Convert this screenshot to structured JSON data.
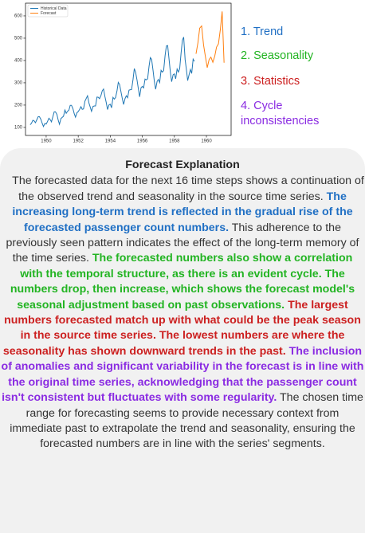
{
  "chart_data": {
    "type": "line",
    "legend": "upper left",
    "xlim": [
      1948.71,
      1961.54
    ],
    "ylim": [
      64,
      657
    ],
    "xticks": [
      1950,
      1952,
      1954,
      1956,
      1958,
      1960
    ],
    "yticks": [
      100,
      200,
      300,
      400,
      500,
      600
    ],
    "grid": false,
    "series": [
      {
        "name": "Historical Data",
        "color": "#1f77b4",
        "x": [
          1949.0,
          1949.08,
          1949.17,
          1949.25,
          1949.33,
          1949.42,
          1949.5,
          1949.58,
          1949.67,
          1949.75,
          1949.83,
          1949.92,
          1950.0,
          1950.08,
          1950.17,
          1950.25,
          1950.33,
          1950.42,
          1950.5,
          1950.58,
          1950.67,
          1950.75,
          1950.83,
          1950.92,
          1951.0,
          1951.08,
          1951.17,
          1951.25,
          1951.33,
          1951.42,
          1951.5,
          1951.58,
          1951.67,
          1951.75,
          1951.83,
          1951.92,
          1952.0,
          1952.08,
          1952.17,
          1952.25,
          1952.33,
          1952.42,
          1952.5,
          1952.58,
          1952.67,
          1952.75,
          1952.83,
          1952.92,
          1953.0,
          1953.08,
          1953.17,
          1953.25,
          1953.33,
          1953.42,
          1953.5,
          1953.58,
          1953.67,
          1953.75,
          1953.83,
          1953.92,
          1954.0,
          1954.08,
          1954.17,
          1954.25,
          1954.33,
          1954.42,
          1954.5,
          1954.58,
          1954.67,
          1954.75,
          1954.83,
          1954.92,
          1955.0,
          1955.08,
          1955.17,
          1955.25,
          1955.33,
          1955.42,
          1955.5,
          1955.58,
          1955.67,
          1955.75,
          1955.83,
          1955.92,
          1956.0,
          1956.08,
          1956.17,
          1956.25,
          1956.33,
          1956.42,
          1956.5,
          1956.58,
          1956.67,
          1956.75,
          1956.83,
          1956.92,
          1957.0,
          1957.08,
          1957.17,
          1957.25,
          1957.33,
          1957.42,
          1957.5,
          1957.58,
          1957.67,
          1957.75,
          1957.83,
          1957.92,
          1958.0,
          1958.08,
          1958.17,
          1958.25,
          1958.33,
          1958.42,
          1958.5,
          1958.58,
          1958.67,
          1958.75,
          1958.83,
          1958.92,
          1959.0,
          1959.08,
          1959.17,
          1959.25
        ],
        "values": [
          112,
          118,
          132,
          129,
          121,
          135,
          148,
          148,
          136,
          119,
          104,
          118,
          115,
          126,
          141,
          135,
          125,
          149,
          170,
          170,
          158,
          133,
          114,
          140,
          145,
          150,
          178,
          163,
          172,
          178,
          199,
          199,
          184,
          162,
          146,
          166,
          171,
          180,
          193,
          181,
          183,
          218,
          230,
          242,
          209,
          191,
          172,
          194,
          196,
          196,
          236,
          235,
          229,
          243,
          264,
          272,
          237,
          211,
          180,
          201,
          204,
          188,
          235,
          227,
          234,
          264,
          302,
          293,
          259,
          229,
          203,
          229,
          242,
          233,
          267,
          269,
          270,
          315,
          364,
          347,
          312,
          274,
          237,
          278,
          284,
          277,
          317,
          313,
          318,
          374,
          413,
          405,
          355,
          306,
          271,
          306,
          315,
          301,
          356,
          348,
          355,
          422,
          465,
          467,
          404,
          347,
          305,
          336,
          340,
          318,
          362,
          348,
          363,
          435,
          491,
          505,
          404,
          359,
          310,
          337,
          360,
          342,
          406,
          396
        ]
      },
      {
        "name": "Forecast",
        "color": "#ff7f0e",
        "x": [
          1959.35,
          1959.47,
          1959.58,
          1959.7,
          1959.82,
          1959.93,
          1960.05,
          1960.17,
          1960.28,
          1960.4,
          1960.52,
          1960.63,
          1960.75,
          1960.87,
          1960.98,
          1961.1
        ],
        "values": [
          430,
          480,
          545,
          555,
          470,
          420,
          368,
          405,
          415,
          392,
          420,
          460,
          475,
          540,
          620,
          390
        ]
      }
    ]
  },
  "aspects": [
    {
      "text": "1. Trend",
      "color": "#1f6fc4"
    },
    {
      "text": "2. Seasonality",
      "color": "#22b422"
    },
    {
      "text": "3. Statistics",
      "color": "#cc2020"
    },
    {
      "text": "4. Cycle inconsistencies",
      "color": "#8a2be2"
    }
  ],
  "explanation": {
    "title": "Forecast Explanation",
    "segments": [
      {
        "text": "The forecasted data for the next 16 time steps shows a continuation of the observed trend and seasonality in the source time series.",
        "color": "#333333",
        "bold": false
      },
      {
        "text": "The increasing long-term trend is reflected in the gradual rise of the forecasted passenger count numbers.",
        "color": "#1f6fc4",
        "bold": true
      },
      {
        "text": "This adherence to the previously seen pattern indicates the effect of the long-term memory of the time series.",
        "color": "#333333",
        "bold": false
      },
      {
        "text": "The forecasted numbers also show a correlation with the temporal structure, as there is an evident cycle. The numbers drop, then increase, which shows the forecast model's seasonal adjustment based on past observations.",
        "color": "#22b422",
        "bold": true
      },
      {
        "text": "The largest numbers forecasted match up with what could be the peak season in the source time series. The lowest numbers are where the seasonality has shown downward trends in the past.",
        "color": "#cc2020",
        "bold": true
      },
      {
        "text": "The inclusion of anomalies and significant variability in the forecast is in line with the original time series, acknowledging that the passenger count isn't consistent but fluctuates with some regularity.",
        "color": "#8a2be2",
        "bold": true
      },
      {
        "text": "The chosen time range for forecasting seems to provide necessary context from immediate past to extrapolate the trend and seasonality, ensuring the forecasted numbers are in line with the series' segments.",
        "color": "#333333",
        "bold": false
      }
    ]
  }
}
